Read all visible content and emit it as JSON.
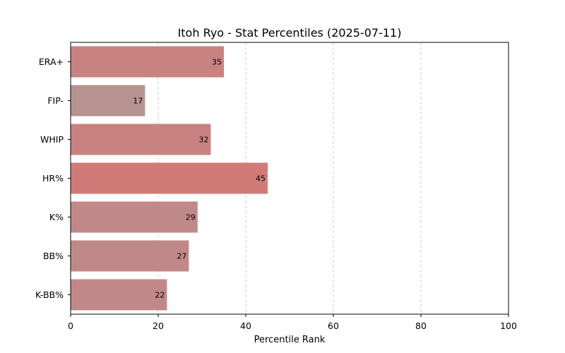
{
  "chart_data": {
    "type": "bar",
    "orientation": "horizontal",
    "title": "Itoh Ryo - Stat Percentiles (2025-07-11)",
    "xlabel": "Percentile Rank",
    "ylabel": "",
    "xlim": [
      0,
      100
    ],
    "xticks": [
      0,
      20,
      40,
      60,
      80,
      100
    ],
    "grid": "x-dashed",
    "categories": [
      "ERA+",
      "FIP-",
      "WHIP",
      "HR%",
      "K%",
      "BB%",
      "K-BB%"
    ],
    "values": [
      35,
      17,
      32,
      45,
      29,
      27,
      22
    ],
    "colors": [
      "#c88280",
      "#b69391",
      "#c88280",
      "#d27a78",
      "#c08988",
      "#c08988",
      "#c08988"
    ]
  }
}
